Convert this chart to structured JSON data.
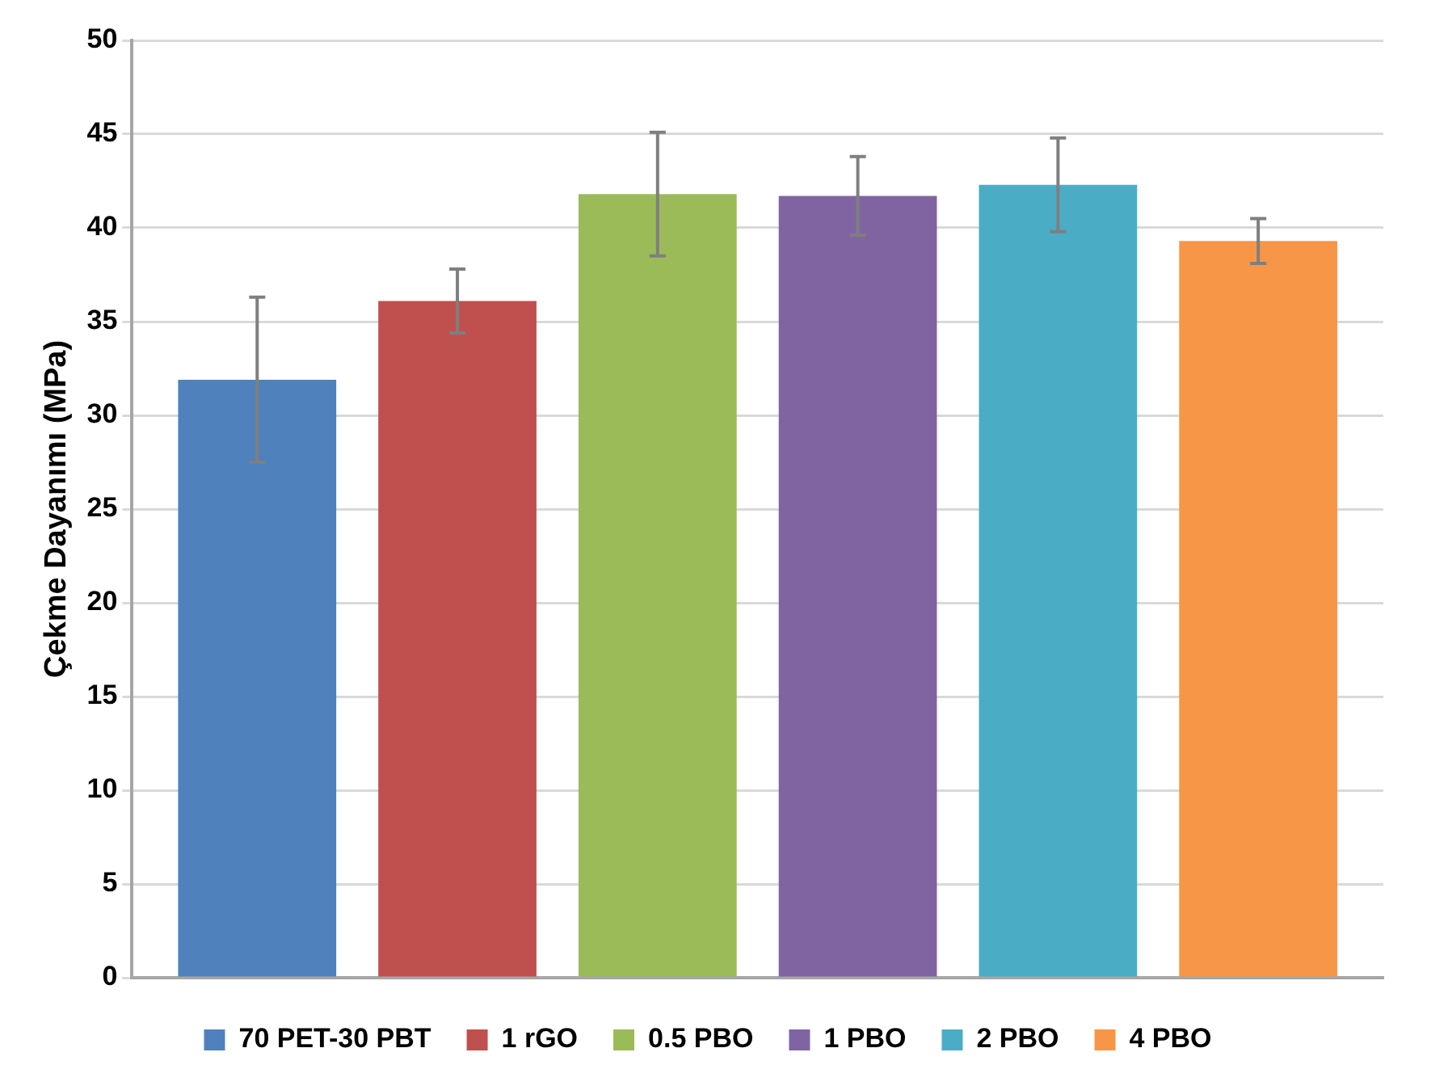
{
  "chart_data": {
    "type": "bar",
    "ylabel": "Çekme Dayanımı (MPa)",
    "categories": [
      null
    ],
    "series": [
      {
        "name": "70 PET-30 PBT",
        "color": "#4f81bd",
        "values": [
          31.9
        ],
        "errors": [
          4.4
        ]
      },
      {
        "name": "1 rGO",
        "color": "#c0504d",
        "values": [
          36.1
        ],
        "errors": [
          1.7
        ]
      },
      {
        "name": "0.5 PBO",
        "color": "#9bbb59",
        "values": [
          41.8
        ],
        "errors": [
          3.3
        ]
      },
      {
        "name": "1 PBO",
        "color": "#8064a2",
        "values": [
          41.7
        ],
        "errors": [
          2.1
        ]
      },
      {
        "name": "2 PBO",
        "color": "#4bacc6",
        "values": [
          42.3
        ],
        "errors": [
          2.5
        ]
      },
      {
        "name": "4 PBO",
        "color": "#f79646",
        "values": [
          39.3
        ],
        "errors": [
          1.2
        ]
      }
    ],
    "ylim": [
      0,
      50
    ],
    "yticks": [
      0,
      5,
      10,
      15,
      20,
      25,
      30,
      35,
      40,
      45,
      50
    ],
    "grid": "y",
    "legend": "bottom",
    "tick_labels": "y"
  }
}
